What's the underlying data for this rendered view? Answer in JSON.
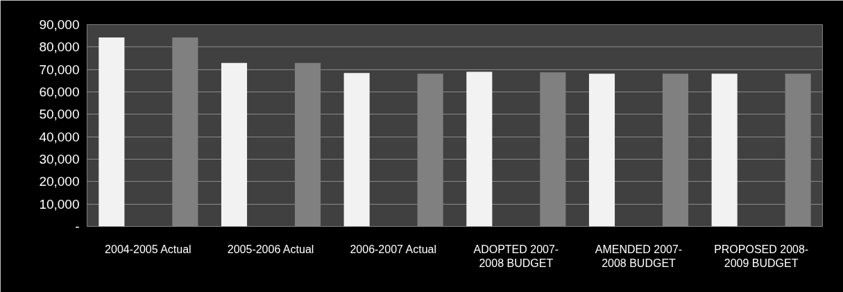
{
  "chart_data": {
    "type": "bar",
    "categories": [
      "2004-2005 Actual",
      "2005-2006 Actual",
      "2006-2007 Actual",
      "ADOPTED 2007-2008 BUDGET",
      "AMENDED 2007-2008 BUDGET",
      "PROPOSED 2008-2009 BUDGET"
    ],
    "series": [
      {
        "color": "#f2f2f2",
        "values": [
          84300,
          72900,
          68400,
          69000,
          68100,
          68100
        ]
      },
      {
        "color": "#808080",
        "values": [
          84300,
          72900,
          68100,
          68700,
          68100,
          68100
        ]
      }
    ],
    "ylim": [
      0,
      90000
    ],
    "yticks": [
      {
        "value": 0,
        "label": "-"
      },
      {
        "value": 10000,
        "label": "10,000"
      },
      {
        "value": 20000,
        "label": "20,000"
      },
      {
        "value": 30000,
        "label": "30,000"
      },
      {
        "value": 40000,
        "label": "40,000"
      },
      {
        "value": 50000,
        "label": "50,000"
      },
      {
        "value": 60000,
        "label": "60,000"
      },
      {
        "value": 70000,
        "label": "70,000"
      },
      {
        "value": 80000,
        "label": "80,000"
      },
      {
        "value": 90000,
        "label": "90,000"
      }
    ],
    "grid": "y"
  }
}
